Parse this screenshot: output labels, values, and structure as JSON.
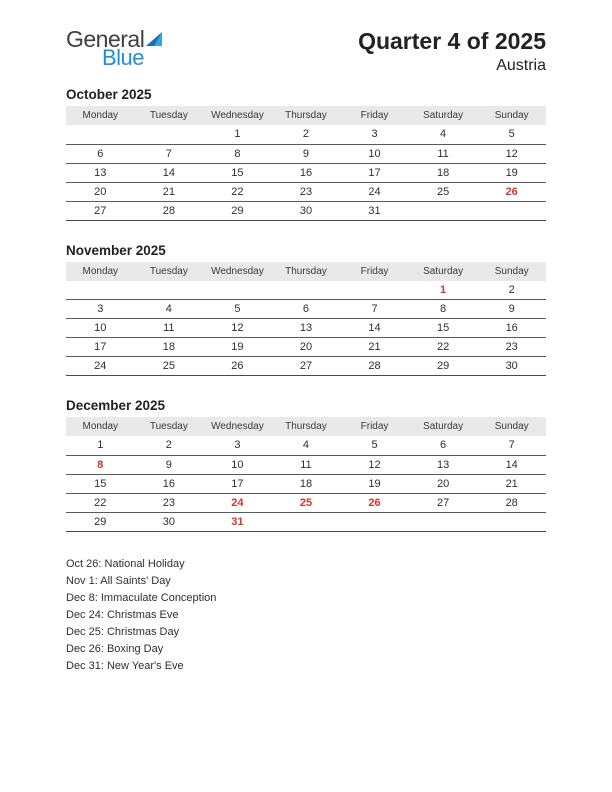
{
  "logo": {
    "word1": "General",
    "word2": "Blue"
  },
  "title": "Quarter 4 of 2025",
  "country": "Austria",
  "weekdays": [
    "Monday",
    "Tuesday",
    "Wednesday",
    "Thursday",
    "Friday",
    "Saturday",
    "Sunday"
  ],
  "colors": {
    "holiday_text": "#d4352a",
    "header_row_bg": "#e9e9e9",
    "rule": "#5a5a5a",
    "logo_blue": "#1f8fd6",
    "text": "#2f2f2f",
    "background": "#ffffff"
  },
  "months": [
    {
      "name": "October 2025",
      "weeks": [
        [
          {
            "d": ""
          },
          {
            "d": ""
          },
          {
            "d": "1"
          },
          {
            "d": "2"
          },
          {
            "d": "3"
          },
          {
            "d": "4"
          },
          {
            "d": "5"
          }
        ],
        [
          {
            "d": "6"
          },
          {
            "d": "7"
          },
          {
            "d": "8"
          },
          {
            "d": "9"
          },
          {
            "d": "10"
          },
          {
            "d": "11"
          },
          {
            "d": "12"
          }
        ],
        [
          {
            "d": "13"
          },
          {
            "d": "14"
          },
          {
            "d": "15"
          },
          {
            "d": "16"
          },
          {
            "d": "17"
          },
          {
            "d": "18"
          },
          {
            "d": "19"
          }
        ],
        [
          {
            "d": "20"
          },
          {
            "d": "21"
          },
          {
            "d": "22"
          },
          {
            "d": "23"
          },
          {
            "d": "24"
          },
          {
            "d": "25"
          },
          {
            "d": "26",
            "h": true
          }
        ],
        [
          {
            "d": "27"
          },
          {
            "d": "28"
          },
          {
            "d": "29"
          },
          {
            "d": "30"
          },
          {
            "d": "31"
          },
          {
            "d": ""
          },
          {
            "d": ""
          }
        ]
      ]
    },
    {
      "name": "November 2025",
      "weeks": [
        [
          {
            "d": ""
          },
          {
            "d": ""
          },
          {
            "d": ""
          },
          {
            "d": ""
          },
          {
            "d": ""
          },
          {
            "d": "1",
            "h": true
          },
          {
            "d": "2"
          }
        ],
        [
          {
            "d": "3"
          },
          {
            "d": "4"
          },
          {
            "d": "5"
          },
          {
            "d": "6"
          },
          {
            "d": "7"
          },
          {
            "d": "8"
          },
          {
            "d": "9"
          }
        ],
        [
          {
            "d": "10"
          },
          {
            "d": "11"
          },
          {
            "d": "12"
          },
          {
            "d": "13"
          },
          {
            "d": "14"
          },
          {
            "d": "15"
          },
          {
            "d": "16"
          }
        ],
        [
          {
            "d": "17"
          },
          {
            "d": "18"
          },
          {
            "d": "19"
          },
          {
            "d": "20"
          },
          {
            "d": "21"
          },
          {
            "d": "22"
          },
          {
            "d": "23"
          }
        ],
        [
          {
            "d": "24"
          },
          {
            "d": "25"
          },
          {
            "d": "26"
          },
          {
            "d": "27"
          },
          {
            "d": "28"
          },
          {
            "d": "29"
          },
          {
            "d": "30"
          }
        ]
      ]
    },
    {
      "name": "December 2025",
      "weeks": [
        [
          {
            "d": "1"
          },
          {
            "d": "2"
          },
          {
            "d": "3"
          },
          {
            "d": "4"
          },
          {
            "d": "5"
          },
          {
            "d": "6"
          },
          {
            "d": "7"
          }
        ],
        [
          {
            "d": "8",
            "h": true
          },
          {
            "d": "9"
          },
          {
            "d": "10"
          },
          {
            "d": "11"
          },
          {
            "d": "12"
          },
          {
            "d": "13"
          },
          {
            "d": "14"
          }
        ],
        [
          {
            "d": "15"
          },
          {
            "d": "16"
          },
          {
            "d": "17"
          },
          {
            "d": "18"
          },
          {
            "d": "19"
          },
          {
            "d": "20"
          },
          {
            "d": "21"
          }
        ],
        [
          {
            "d": "22"
          },
          {
            "d": "23"
          },
          {
            "d": "24",
            "h": true
          },
          {
            "d": "25",
            "h": true
          },
          {
            "d": "26",
            "h": true
          },
          {
            "d": "27"
          },
          {
            "d": "28"
          }
        ],
        [
          {
            "d": "29"
          },
          {
            "d": "30"
          },
          {
            "d": "31",
            "h": true
          },
          {
            "d": ""
          },
          {
            "d": ""
          },
          {
            "d": ""
          },
          {
            "d": ""
          }
        ]
      ]
    }
  ],
  "holidays": [
    "Oct 26: National Holiday",
    "Nov 1: All Saints' Day",
    "Dec 8: Immaculate Conception",
    "Dec 24: Christmas Eve",
    "Dec 25: Christmas Day",
    "Dec 26: Boxing Day",
    "Dec 31: New Year's Eve"
  ]
}
